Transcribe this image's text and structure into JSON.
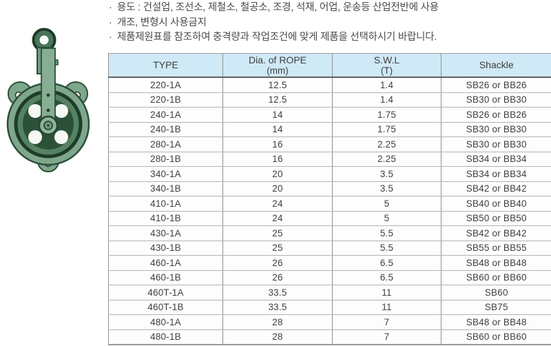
{
  "notes": {
    "bullet": "·",
    "items": [
      "용도 : 건설업, 조선소, 제철소, 철공소, 조경, 석재, 어업, 운송등 산업전반에 사용",
      "개조, 변형시 사용금지",
      "제품제원표를 참조하여 충격량과 작업조건에 맞게 제품을 선택하시기 바랍니다."
    ]
  },
  "product_image": {
    "description": "green cast-iron snatch block pulley with top eye ring"
  },
  "table": {
    "headers": [
      {
        "line1": "TYPE",
        "line2": ""
      },
      {
        "line1": "Dia. of ROPE",
        "line2": "(mm)"
      },
      {
        "line1": "S.W.L",
        "line2": "(T)"
      },
      {
        "line1": "Shackle",
        "line2": ""
      }
    ],
    "rows": [
      [
        "220-1A",
        "12.5",
        "1.4",
        "SB26 or BB26"
      ],
      [
        "220-1B",
        "12.5",
        "1.4",
        "SB30 or BB30"
      ],
      [
        "240-1A",
        "14",
        "1.75",
        "SB26 or BB26"
      ],
      [
        "240-1B",
        "14",
        "1.75",
        "SB30 or BB30"
      ],
      [
        "280-1A",
        "16",
        "2.25",
        "SB30 or BB30"
      ],
      [
        "280-1B",
        "16",
        "2.25",
        "SB34 or BB34"
      ],
      [
        "340-1A",
        "20",
        "3.5",
        "SB34 or BB34"
      ],
      [
        "340-1B",
        "20",
        "3.5",
        "SB42 or BB42"
      ],
      [
        "410-1A",
        "24",
        "5",
        "SB40 or BB40"
      ],
      [
        "410-1B",
        "24",
        "5",
        "SB50 or BB50"
      ],
      [
        "430-1A",
        "25",
        "5.5",
        "SB42 or BB42"
      ],
      [
        "430-1B",
        "25",
        "5.5",
        "SB55 or BB55"
      ],
      [
        "460-1A",
        "26",
        "6.5",
        "SB48 or BB48"
      ],
      [
        "460-1B",
        "26",
        "6.5",
        "SB60 or BB60"
      ],
      [
        "460T-1A",
        "33.5",
        "11",
        "SB60"
      ],
      [
        "460T-1B",
        "33.5",
        "11",
        "SB75"
      ],
      [
        "480-1A",
        "28",
        "7",
        "SB48 or BB48"
      ],
      [
        "480-1B",
        "28",
        "7",
        "SB60 or BB60"
      ]
    ]
  },
  "colors": {
    "header_bg": "#cfe9f6",
    "table_border": "#8e8e8e",
    "row_line": "#b3b3b3",
    "text": "#3e3e3e",
    "pulley_green": "#7fa78c",
    "pulley_dark_green": "#24462f"
  }
}
